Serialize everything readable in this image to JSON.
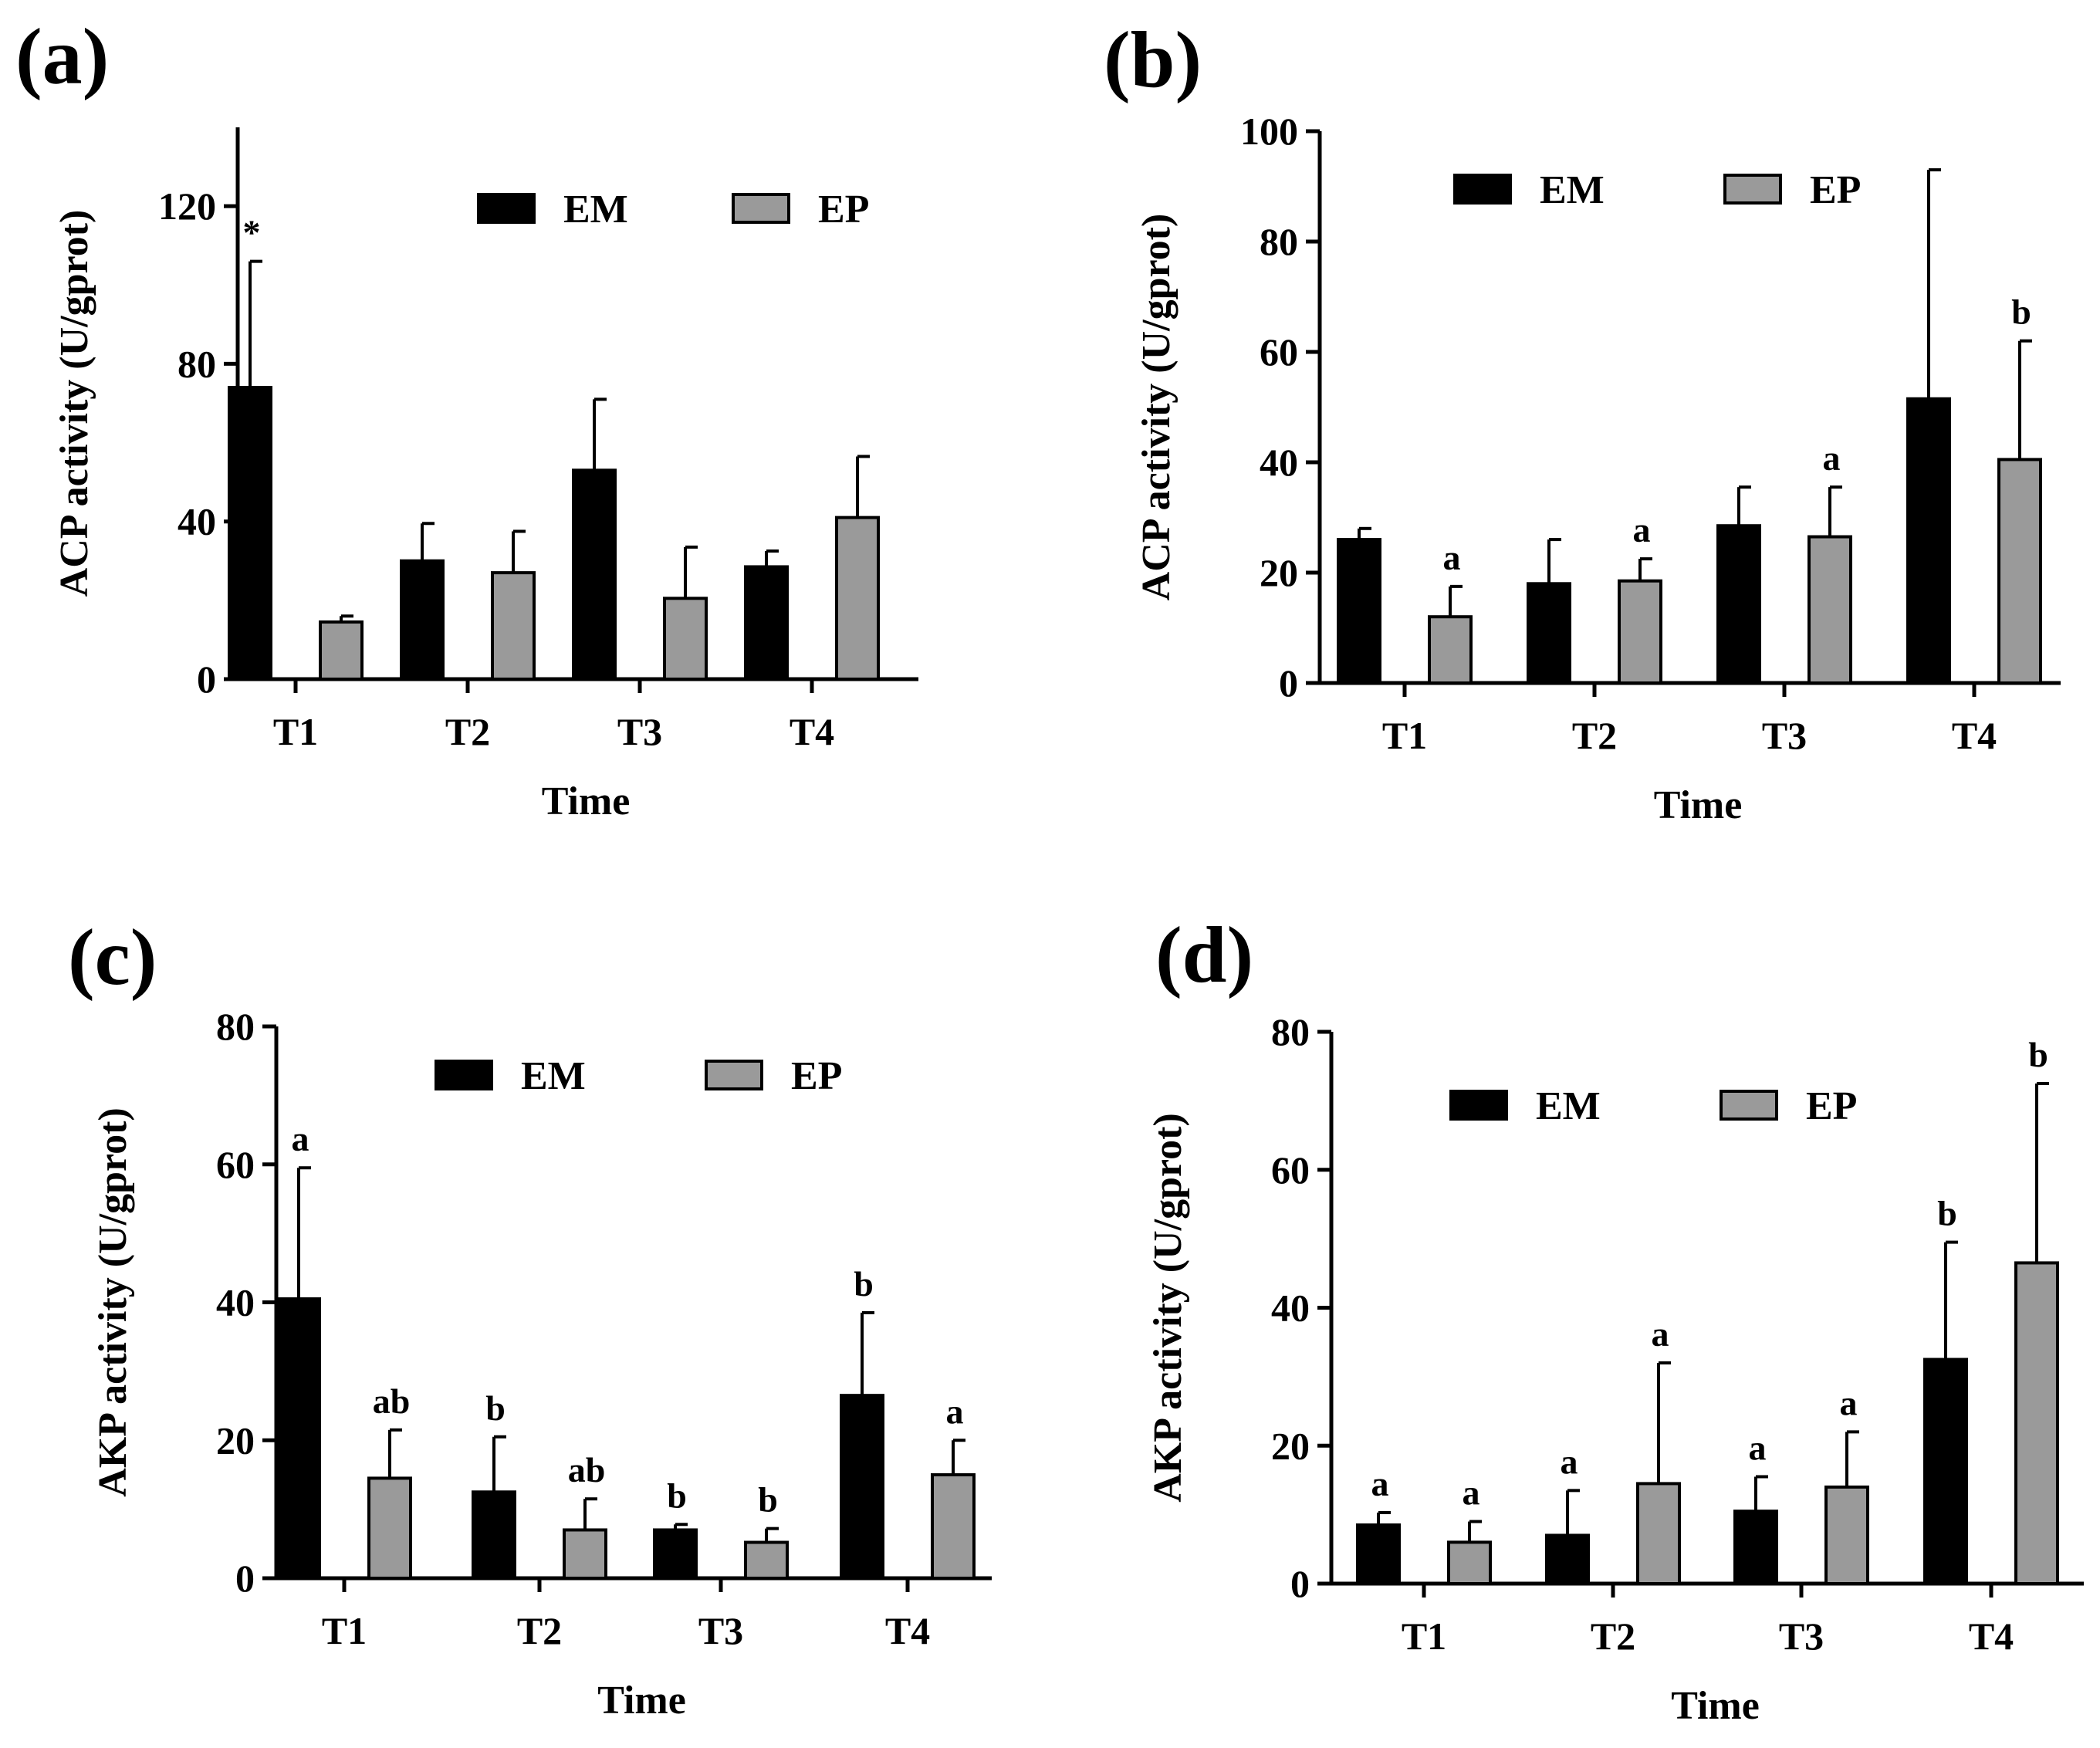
{
  "figure": {
    "panels_labels": [
      "(a)",
      "(b)",
      "(c)",
      "(d)"
    ]
  },
  "legend": {
    "em_label": "EM",
    "ep_label": "EP",
    "em_color": "#000000",
    "ep_color": "#9a9a9a"
  },
  "chart_data": [
    {
      "type": "bar",
      "panel_label": "(a)",
      "categories": [
        "T1",
        "T2",
        "T3",
        "T4"
      ],
      "series": [
        {
          "name": "EM",
          "values": [
            74,
            30,
            53,
            28.5
          ],
          "errors": [
            32,
            9.5,
            18,
            4
          ]
        },
        {
          "name": "EP",
          "values": [
            14.5,
            27,
            20.5,
            41
          ],
          "errors": [
            1.5,
            10.5,
            13,
            15.5
          ]
        }
      ],
      "significance": {
        "EM": [
          "*",
          "",
          "",
          ""
        ],
        "EP": [
          "",
          "",
          "",
          ""
        ]
      },
      "xlabel": "Time",
      "ylabel": "ACP activity (U/gprot)",
      "ylim": [
        0,
        140
      ],
      "yticks": [
        0,
        40,
        80,
        120
      ]
    },
    {
      "type": "bar",
      "panel_label": "(b)",
      "categories": [
        "T1",
        "T2",
        "T3",
        "T4"
      ],
      "series": [
        {
          "name": "EM",
          "values": [
            26,
            18,
            28.5,
            51.5
          ],
          "errors": [
            2,
            8,
            7,
            41.5
          ]
        },
        {
          "name": "EP",
          "values": [
            12,
            18.5,
            26.5,
            40.5
          ],
          "errors": [
            5.5,
            4,
            9,
            21.5
          ]
        }
      ],
      "significance": {
        "EM": [
          "",
          "",
          "",
          ""
        ],
        "EP": [
          "a",
          "a",
          "a",
          "b"
        ]
      },
      "xlabel": "Time",
      "ylabel": "ACP activity (U/gprot)",
      "ylim": [
        0,
        100
      ],
      "yticks": [
        0,
        20,
        40,
        60,
        80,
        100
      ]
    },
    {
      "type": "bar",
      "panel_label": "(c)",
      "categories": [
        "T1",
        "T2",
        "T3",
        "T4"
      ],
      "series": [
        {
          "name": "EM",
          "values": [
            40.5,
            12.5,
            7,
            26.5
          ],
          "errors": [
            19,
            8,
            0.8,
            12
          ]
        },
        {
          "name": "EP",
          "values": [
            14.5,
            7,
            5.2,
            15
          ],
          "errors": [
            7,
            4.5,
            2,
            5
          ]
        }
      ],
      "significance": {
        "EM": [
          "a",
          "b",
          "b",
          "b"
        ],
        "EP": [
          "ab",
          "ab",
          "b",
          "a"
        ]
      },
      "xlabel": "Time",
      "ylabel": "AKP activity (U/gprot)",
      "ylim": [
        0,
        80
      ],
      "yticks": [
        0,
        20,
        40,
        60,
        80
      ]
    },
    {
      "type": "bar",
      "panel_label": "(d)",
      "categories": [
        "T1",
        "T2",
        "T3",
        "T4"
      ],
      "series": [
        {
          "name": "EM",
          "values": [
            8.5,
            7,
            10.5,
            32.5
          ],
          "errors": [
            1.8,
            6.5,
            5,
            17
          ]
        },
        {
          "name": "EP",
          "values": [
            6,
            14.5,
            14,
            46.5
          ],
          "errors": [
            3,
            17.5,
            8,
            26
          ]
        }
      ],
      "significance": {
        "EM": [
          "a",
          "a",
          "a",
          "b"
        ],
        "EP": [
          "a",
          "a",
          "a",
          "b"
        ]
      },
      "xlabel": "Time",
      "ylabel": "AKP activity (U/gprot)",
      "ylim": [
        0,
        80
      ],
      "yticks": [
        0,
        20,
        40,
        60,
        80
      ]
    }
  ]
}
